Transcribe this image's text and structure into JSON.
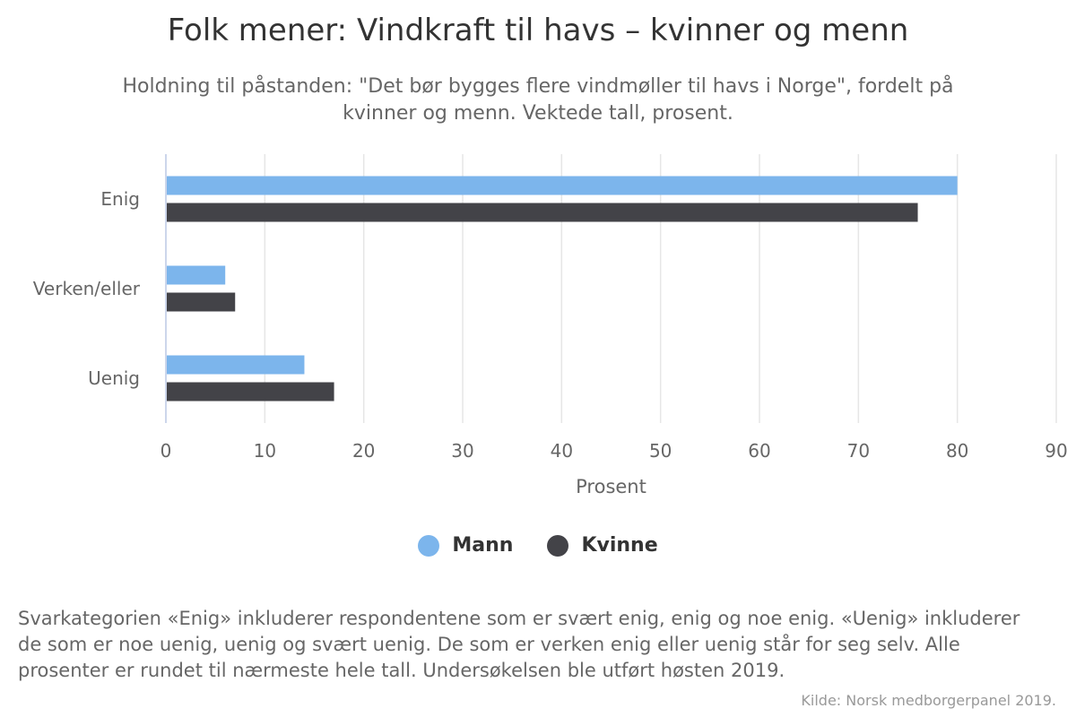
{
  "chart_data": {
    "type": "bar",
    "orientation": "horizontal",
    "title": "Folk mener: Vindkraft til havs – kvinner og menn",
    "subtitle": "Holdning til påstanden: \"Det bør bygges flere vindmøller til havs i Norge\", fordelt på kvinner og menn. Vektede tall, prosent.",
    "categories": [
      "Enig",
      "Verken/eller",
      "Uenig"
    ],
    "series": [
      {
        "name": "Mann",
        "color": "#7cb5ec",
        "values": [
          80,
          6,
          14
        ]
      },
      {
        "name": "Kvinne",
        "color": "#434348",
        "values": [
          76,
          7,
          17
        ]
      }
    ],
    "xlabel": "Prosent",
    "ylabel": "",
    "xlim": [
      0,
      90
    ],
    "ticks": [
      "0",
      "10",
      "20",
      "30",
      "40",
      "50",
      "60",
      "70",
      "80",
      "90"
    ],
    "grid": true,
    "legend_position": "bottom-center"
  },
  "caption": "Svarkategorien «Enig» inkluderer respondentene som er svært enig, enig og noe enig. «Uenig» inkluderer de som er noe uenig, uenig og svært uenig. De som er verken enig eller uenig står for seg selv. Alle prosenter er rundet til nærmeste hele tall. Undersøkelsen ble utført høsten 2019.",
  "credits": "Kilde: Norsk medborgerpanel 2019."
}
